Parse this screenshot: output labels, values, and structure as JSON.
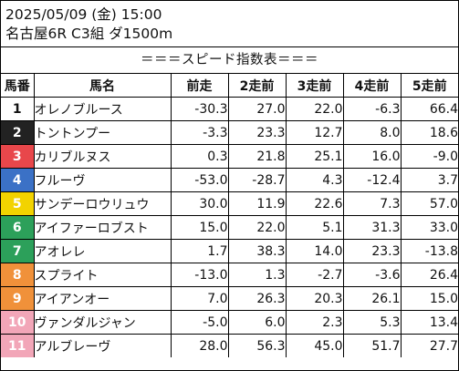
{
  "header": {
    "date_line": "2025/05/09 (金) 15:00",
    "race_line": "名古屋6R C3組 ダ1500m"
  },
  "subtitle": "＝＝＝スピード指数表＝＝＝",
  "columns": [
    "馬番",
    "馬名",
    "前走",
    "2走前",
    "3走前",
    "4走前",
    "5走前"
  ],
  "rows": [
    {
      "no": "1",
      "name": "オレノブルース",
      "vals": [
        "-30.3",
        "27.0",
        "22.0",
        "-6.3",
        "66.4"
      ],
      "bg": "#ffffff",
      "fg": "#111111"
    },
    {
      "no": "2",
      "name": "トントンプー",
      "vals": [
        "-3.3",
        "23.3",
        "12.7",
        "8.0",
        "18.6"
      ],
      "bg": "#222222",
      "fg": "#ffffff"
    },
    {
      "no": "3",
      "name": "カリブルヌス",
      "vals": [
        "0.3",
        "21.8",
        "25.1",
        "16.0",
        "-9.0"
      ],
      "bg": "#e8474b",
      "fg": "#ffffff"
    },
    {
      "no": "4",
      "name": "フルーヴ",
      "vals": [
        "-53.0",
        "-28.7",
        "4.3",
        "-12.4",
        "3.7"
      ],
      "bg": "#3b71c6",
      "fg": "#ffffff"
    },
    {
      "no": "5",
      "name": "サンデーロウリュウ",
      "vals": [
        "30.0",
        "11.9",
        "22.6",
        "7.3",
        "57.0"
      ],
      "bg": "#f2d300",
      "fg": "#ffffff"
    },
    {
      "no": "6",
      "name": "アイファーロブスト",
      "vals": [
        "15.0",
        "22.0",
        "5.1",
        "31.3",
        "33.0"
      ],
      "bg": "#2ca05a",
      "fg": "#ffffff"
    },
    {
      "no": "7",
      "name": "アオレレ",
      "vals": [
        "1.7",
        "38.3",
        "14.0",
        "23.3",
        "-13.8"
      ],
      "bg": "#2ca05a",
      "fg": "#ffffff"
    },
    {
      "no": "8",
      "name": "スプライト",
      "vals": [
        "-13.0",
        "1.3",
        "-2.7",
        "-3.6",
        "26.4"
      ],
      "bg": "#f0913a",
      "fg": "#ffffff"
    },
    {
      "no": "9",
      "name": "アイアンオー",
      "vals": [
        "7.0",
        "26.3",
        "20.3",
        "26.1",
        "15.0"
      ],
      "bg": "#f0913a",
      "fg": "#ffffff"
    },
    {
      "no": "10",
      "name": "ヴァンダルジャン",
      "vals": [
        "-5.0",
        "6.0",
        "2.3",
        "5.3",
        "13.4"
      ],
      "bg": "#f2a6b8",
      "fg": "#ffffff"
    },
    {
      "no": "11",
      "name": "アルブレーヴ",
      "vals": [
        "28.0",
        "56.3",
        "45.0",
        "51.7",
        "27.7"
      ],
      "bg": "#f2a6b8",
      "fg": "#ffffff"
    }
  ]
}
